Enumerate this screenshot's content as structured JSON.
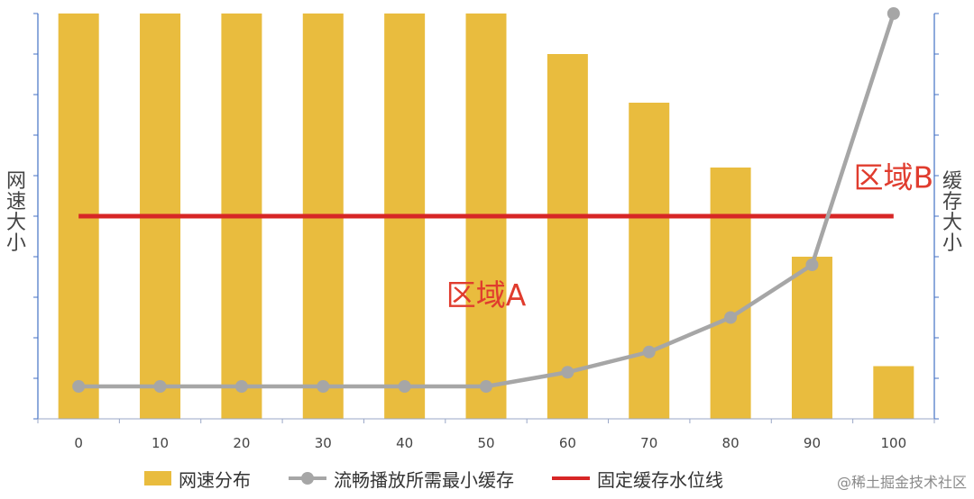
{
  "chart_data": {
    "type": "bar",
    "xlabel": "",
    "ylabel": "网速大小",
    "y2label": "缓存大小",
    "categories": [
      "0",
      "10",
      "20",
      "30",
      "40",
      "50",
      "60",
      "70",
      "80",
      "90",
      "100"
    ],
    "ylim": [
      0,
      100
    ],
    "y2lim": [
      0,
      100
    ],
    "grid": false,
    "legend_position": "bottom",
    "series": [
      {
        "name": "网速分布",
        "type": "bar",
        "axis": "left",
        "color": "#E9BC3E",
        "values": [
          100,
          100,
          100,
          100,
          100,
          100,
          90,
          78,
          62,
          40,
          13
        ]
      },
      {
        "name": "流畅播放所需最小缓存",
        "type": "line",
        "axis": "right",
        "color": "#A6A6A6",
        "values": [
          8,
          8,
          8,
          8,
          8,
          8,
          11.5,
          16.5,
          25,
          38,
          100
        ]
      },
      {
        "name": "固定缓存水位线",
        "type": "line",
        "axis": "right",
        "color": "#D72626",
        "values": [
          50,
          50,
          50,
          50,
          50,
          50,
          50,
          50,
          50,
          50,
          50
        ]
      }
    ],
    "annotations": [
      {
        "text": "区域A",
        "x": "50",
        "y": 28,
        "color": "#E03C2E"
      },
      {
        "text": "区域B",
        "x": "100",
        "y": 57,
        "color": "#E03C2E"
      }
    ]
  },
  "legend": {
    "bar_label": "网速分布",
    "line_label": "流畅播放所需最小缓存",
    "red_label": "固定缓存水位线"
  },
  "watermark": "@稀土掘金技术社区"
}
